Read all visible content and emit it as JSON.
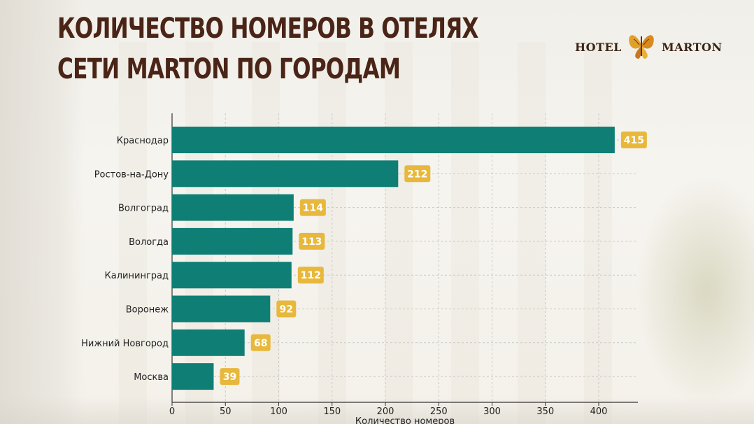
{
  "title": {
    "line1": "КОЛИЧЕСТВО НОМЕРОВ В ОТЕЛЯХ",
    "line2": "СЕТИ MARTON ПО ГОРОДАМ"
  },
  "logo": {
    "left_word": "HOTEL",
    "right_word": "MARTON",
    "emblem": "butterfly-icon"
  },
  "colors": {
    "bar": "#0f7f76",
    "label_bg": "#e8b83c",
    "title": "#4a2417",
    "grid": "#c9c9c9"
  },
  "chart_data": {
    "type": "bar",
    "orientation": "horizontal",
    "categories": [
      "Краснодар",
      "Ростов-на-Дону",
      "Волгоград",
      "Вологда",
      "Калининград",
      "Воронеж",
      "Нижний Новгород",
      "Москва"
    ],
    "values": [
      415,
      212,
      114,
      113,
      112,
      92,
      68,
      39
    ],
    "xlabel": "Количество номеров",
    "xlim": [
      0,
      430
    ],
    "xticks": [
      0,
      50,
      100,
      150,
      200,
      250,
      300,
      350,
      400
    ],
    "grid": true,
    "data_labels": true
  }
}
